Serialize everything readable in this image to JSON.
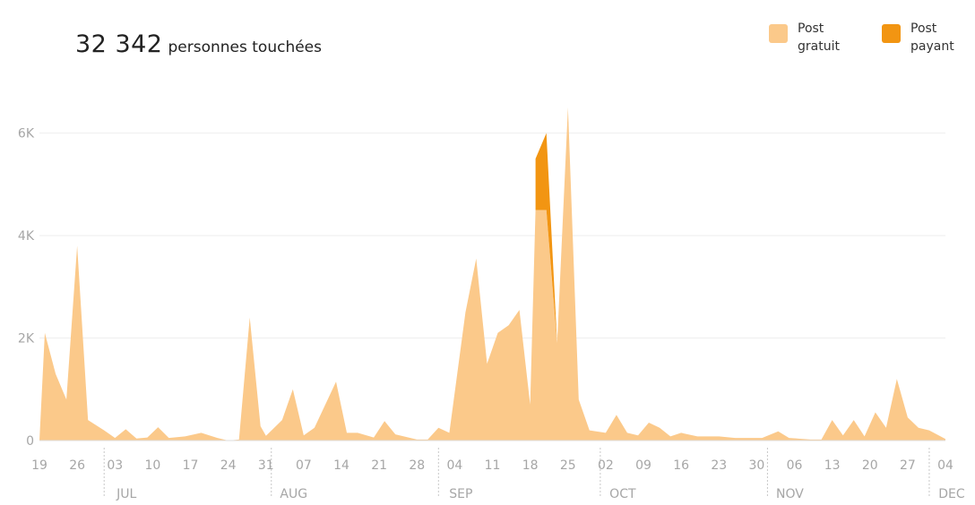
{
  "header": {
    "total": "32 342",
    "total_label": "personnes touchées"
  },
  "legend": [
    {
      "label": "Post gratuit",
      "color": "#fbc98a"
    },
    {
      "label": "Post payant",
      "color": "#f29512"
    }
  ],
  "chart_data": {
    "type": "area",
    "title": "",
    "xlabel": "",
    "ylabel": "",
    "ylim": [
      0,
      6500
    ],
    "y_ticks": [
      {
        "value": 0,
        "label": "0"
      },
      {
        "value": 2000,
        "label": "2K"
      },
      {
        "value": 4000,
        "label": "4K"
      },
      {
        "value": 6000,
        "label": "6K"
      }
    ],
    "x_ticks": [
      {
        "date": "2016-06-19",
        "label": "19"
      },
      {
        "date": "2016-06-26",
        "label": "26"
      },
      {
        "date": "2016-07-03",
        "label": "03"
      },
      {
        "date": "2016-07-10",
        "label": "10"
      },
      {
        "date": "2016-07-17",
        "label": "17"
      },
      {
        "date": "2016-07-24",
        "label": "24"
      },
      {
        "date": "2016-07-31",
        "label": "31"
      },
      {
        "date": "2016-08-07",
        "label": "07"
      },
      {
        "date": "2016-08-14",
        "label": "14"
      },
      {
        "date": "2016-08-21",
        "label": "21"
      },
      {
        "date": "2016-08-28",
        "label": "28"
      },
      {
        "date": "2016-09-04",
        "label": "04"
      },
      {
        "date": "2016-09-11",
        "label": "11"
      },
      {
        "date": "2016-09-18",
        "label": "18"
      },
      {
        "date": "2016-09-25",
        "label": "25"
      },
      {
        "date": "2016-10-02",
        "label": "02"
      },
      {
        "date": "2016-10-09",
        "label": "09"
      },
      {
        "date": "2016-10-16",
        "label": "16"
      },
      {
        "date": "2016-10-23",
        "label": "23"
      },
      {
        "date": "2016-10-30",
        "label": "30"
      },
      {
        "date": "2016-11-06",
        "label": "06"
      },
      {
        "date": "2016-11-13",
        "label": "13"
      },
      {
        "date": "2016-11-20",
        "label": "20"
      },
      {
        "date": "2016-11-27",
        "label": "27"
      },
      {
        "date": "2016-12-04",
        "label": "04"
      }
    ],
    "months": [
      {
        "date": "2016-07-01",
        "label": "JUL"
      },
      {
        "date": "2016-08-01",
        "label": "AUG"
      },
      {
        "date": "2016-09-01",
        "label": "SEP"
      },
      {
        "date": "2016-10-01",
        "label": "OCT"
      },
      {
        "date": "2016-11-01",
        "label": "NOV"
      },
      {
        "date": "2016-12-01",
        "label": "DEC"
      }
    ],
    "series": [
      {
        "name": "Post gratuit",
        "color": "#fbc98a",
        "points": [
          [
            "2016-06-19",
            0
          ],
          [
            "2016-06-20",
            2100
          ],
          [
            "2016-06-22",
            1300
          ],
          [
            "2016-06-24",
            800
          ],
          [
            "2016-06-26",
            3800
          ],
          [
            "2016-06-28",
            400
          ],
          [
            "2016-07-01",
            200
          ],
          [
            "2016-07-03",
            50
          ],
          [
            "2016-07-05",
            220
          ],
          [
            "2016-07-07",
            40
          ],
          [
            "2016-07-09",
            60
          ],
          [
            "2016-07-11",
            260
          ],
          [
            "2016-07-13",
            50
          ],
          [
            "2016-07-16",
            80
          ],
          [
            "2016-07-19",
            150
          ],
          [
            "2016-07-22",
            50
          ],
          [
            "2016-07-24",
            0
          ],
          [
            "2016-07-26",
            20
          ],
          [
            "2016-07-28",
            2400
          ],
          [
            "2016-07-30",
            280
          ],
          [
            "2016-07-31",
            90
          ],
          [
            "2016-08-03",
            400
          ],
          [
            "2016-08-05",
            1000
          ],
          [
            "2016-08-07",
            100
          ],
          [
            "2016-08-09",
            250
          ],
          [
            "2016-08-13",
            1150
          ],
          [
            "2016-08-15",
            150
          ],
          [
            "2016-08-17",
            150
          ],
          [
            "2016-08-20",
            60
          ],
          [
            "2016-08-22",
            380
          ],
          [
            "2016-08-24",
            120
          ],
          [
            "2016-08-28",
            20
          ],
          [
            "2016-08-30",
            20
          ],
          [
            "2016-09-01",
            250
          ],
          [
            "2016-09-03",
            150
          ],
          [
            "2016-09-06",
            2500
          ],
          [
            "2016-09-08",
            3550
          ],
          [
            "2016-09-10",
            1500
          ],
          [
            "2016-09-12",
            2100
          ],
          [
            "2016-09-14",
            2250
          ],
          [
            "2016-09-16",
            2550
          ],
          [
            "2016-09-18",
            700
          ],
          [
            "2016-09-19",
            4500
          ],
          [
            "2016-09-21",
            4500
          ],
          [
            "2016-09-23",
            1900
          ],
          [
            "2016-09-25",
            6500
          ],
          [
            "2016-09-27",
            800
          ],
          [
            "2016-09-29",
            200
          ],
          [
            "2016-10-02",
            150
          ],
          [
            "2016-10-04",
            500
          ],
          [
            "2016-10-06",
            150
          ],
          [
            "2016-10-08",
            100
          ],
          [
            "2016-10-10",
            350
          ],
          [
            "2016-10-12",
            250
          ],
          [
            "2016-10-14",
            80
          ],
          [
            "2016-10-16",
            150
          ],
          [
            "2016-10-19",
            80
          ],
          [
            "2016-10-23",
            80
          ],
          [
            "2016-10-26",
            50
          ],
          [
            "2016-10-31",
            50
          ],
          [
            "2016-11-03",
            180
          ],
          [
            "2016-11-05",
            50
          ],
          [
            "2016-11-09",
            20
          ],
          [
            "2016-11-11",
            20
          ],
          [
            "2016-11-13",
            400
          ],
          [
            "2016-11-15",
            100
          ],
          [
            "2016-11-17",
            400
          ],
          [
            "2016-11-19",
            80
          ],
          [
            "2016-11-21",
            550
          ],
          [
            "2016-11-23",
            250
          ],
          [
            "2016-11-25",
            1200
          ],
          [
            "2016-11-27",
            450
          ],
          [
            "2016-11-29",
            250
          ],
          [
            "2016-12-01",
            200
          ],
          [
            "2016-12-04",
            30
          ]
        ]
      },
      {
        "name": "Post payant",
        "color": "#f29512",
        "points": [
          [
            "2016-09-19",
            5500
          ],
          [
            "2016-09-21",
            6000
          ],
          [
            "2016-09-23",
            1900
          ]
        ]
      }
    ],
    "grid": true,
    "legend_position": "top-right"
  }
}
